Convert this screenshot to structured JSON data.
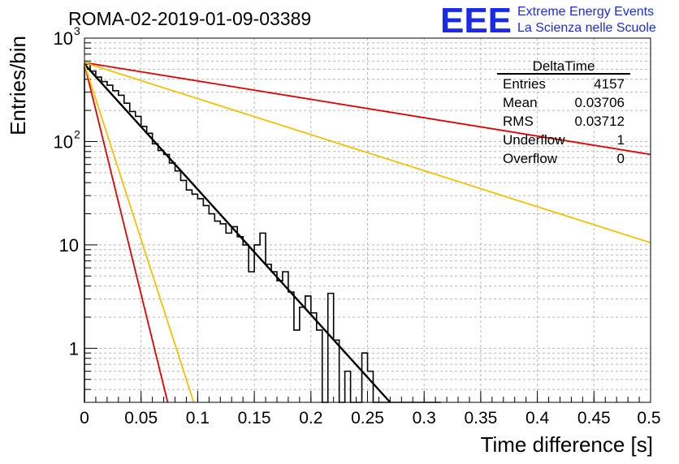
{
  "header": {
    "run_title": "ROMA-02-2019-01-09-03389",
    "logo_text": "EEE",
    "logo_line1": "Extreme Energy Events",
    "logo_line2": "La Scienza nelle Scuole"
  },
  "stats_box": {
    "title": "DeltaTime",
    "rows": [
      {
        "label": "Entries",
        "value": "4157"
      },
      {
        "label": "Mean",
        "value": "0.03706"
      },
      {
        "label": "RMS",
        "value": "0.03712"
      },
      {
        "label": "Underflow",
        "value": "1"
      },
      {
        "label": "Overflow",
        "value": "0"
      }
    ]
  },
  "chart_data": {
    "type": "line",
    "xlabel": "Time difference [s]",
    "ylabel": "Entries/bin",
    "xlim": [
      0,
      0.5
    ],
    "ylim": [
      0.3,
      1000
    ],
    "y_scale": "log",
    "grid": true,
    "x_ticks": [
      "0",
      "0.05",
      "0.1",
      "0.15",
      "0.2",
      "0.25",
      "0.3",
      "0.35",
      "0.4",
      "0.45",
      "0.5"
    ],
    "y_ticks": [
      {
        "value": 1,
        "label": "1"
      },
      {
        "value": 10,
        "label": "10"
      },
      {
        "value": 100,
        "label": "10",
        "exp": "2"
      },
      {
        "value": 1000,
        "label": "10",
        "exp": "3"
      }
    ],
    "histogram": {
      "bin_width": 0.005,
      "color": "#000000",
      "counts": [
        560,
        480,
        420,
        380,
        350,
        310,
        280,
        235,
        195,
        175,
        140,
        120,
        95,
        82,
        75,
        62,
        52,
        42,
        34,
        31,
        28,
        24,
        20,
        17,
        16,
        13,
        15,
        12,
        10,
        5.5,
        10,
        13,
        6.5,
        5.5,
        4.5,
        5.5,
        3.5,
        1.5,
        2.5,
        3.2,
        2.2,
        1.5,
        0.3,
        3.4,
        1.2,
        0.3,
        0.6,
        0.3,
        0.3,
        0.9,
        0.6,
        0.3,
        0.3,
        0.3,
        0.3,
        0.3,
        0.3,
        0.3,
        0.3,
        0.3,
        0.3,
        0.3,
        0.3
      ]
    },
    "series": [
      {
        "x": [
          0,
          0.27
        ],
        "y": [
          560,
          0.3
        ],
        "color": "#000000"
      },
      {
        "x": [
          0,
          0.5
        ],
        "y": [
          580,
          75
        ],
        "color": "#e00000"
      },
      {
        "x": [
          0,
          0.5
        ],
        "y": [
          580,
          10.5
        ],
        "color": "#f5c000"
      },
      {
        "x": [
          0,
          0.0735
        ],
        "y": [
          560,
          0.3
        ],
        "color": "#e00000"
      },
      {
        "x": [
          0,
          0.0965
        ],
        "y": [
          560,
          0.3
        ],
        "color": "#f5c000"
      }
    ]
  }
}
